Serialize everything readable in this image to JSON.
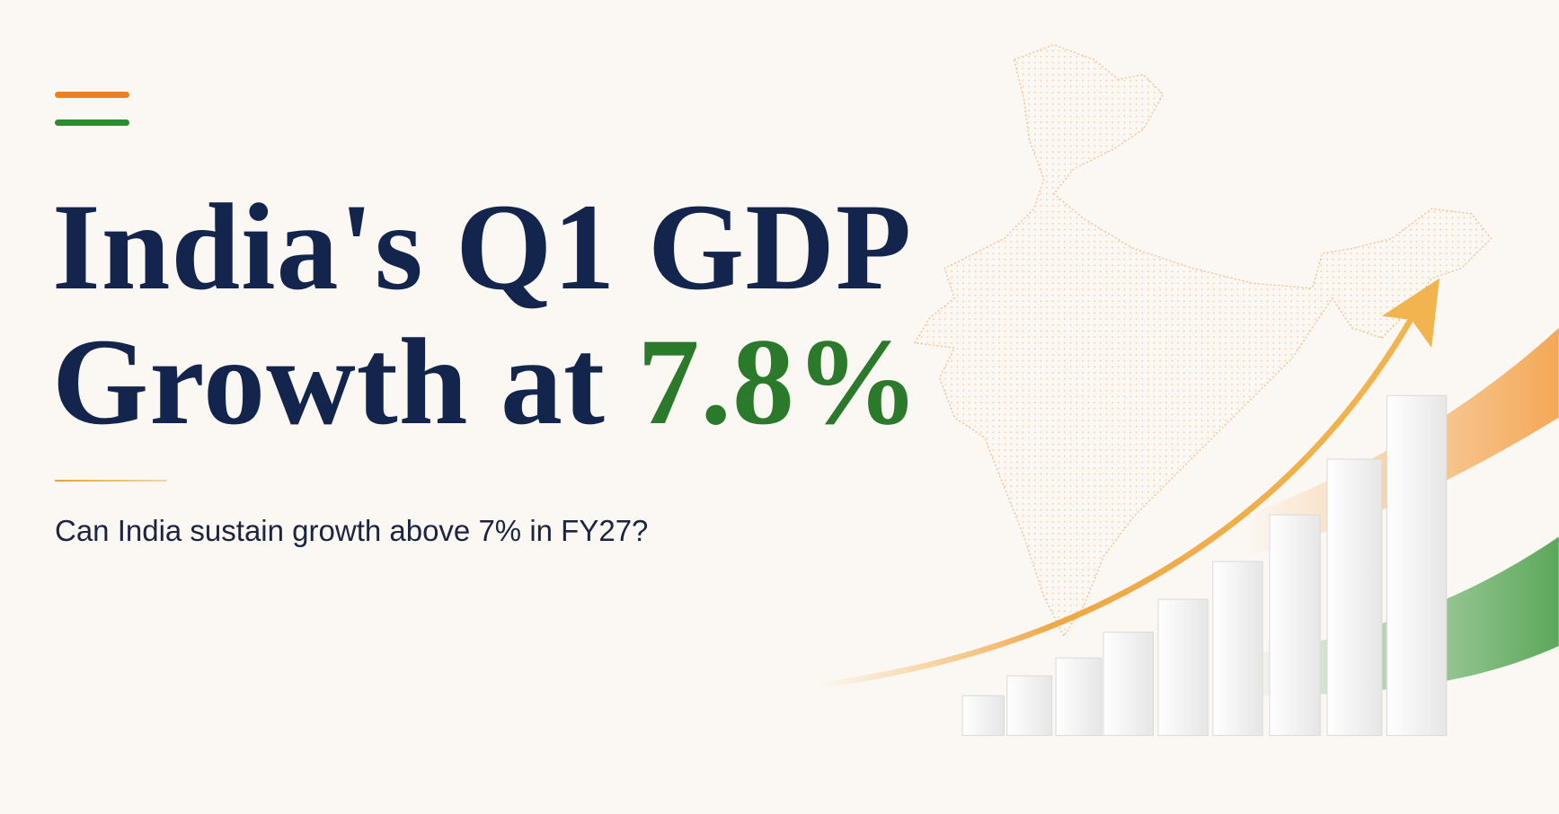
{
  "headline": {
    "line1": "India's Q1 GDP",
    "line2": "Growth at",
    "highlight": "7.8%"
  },
  "subtitle": "Can India sustain growth above 7% in FY27?"
}
